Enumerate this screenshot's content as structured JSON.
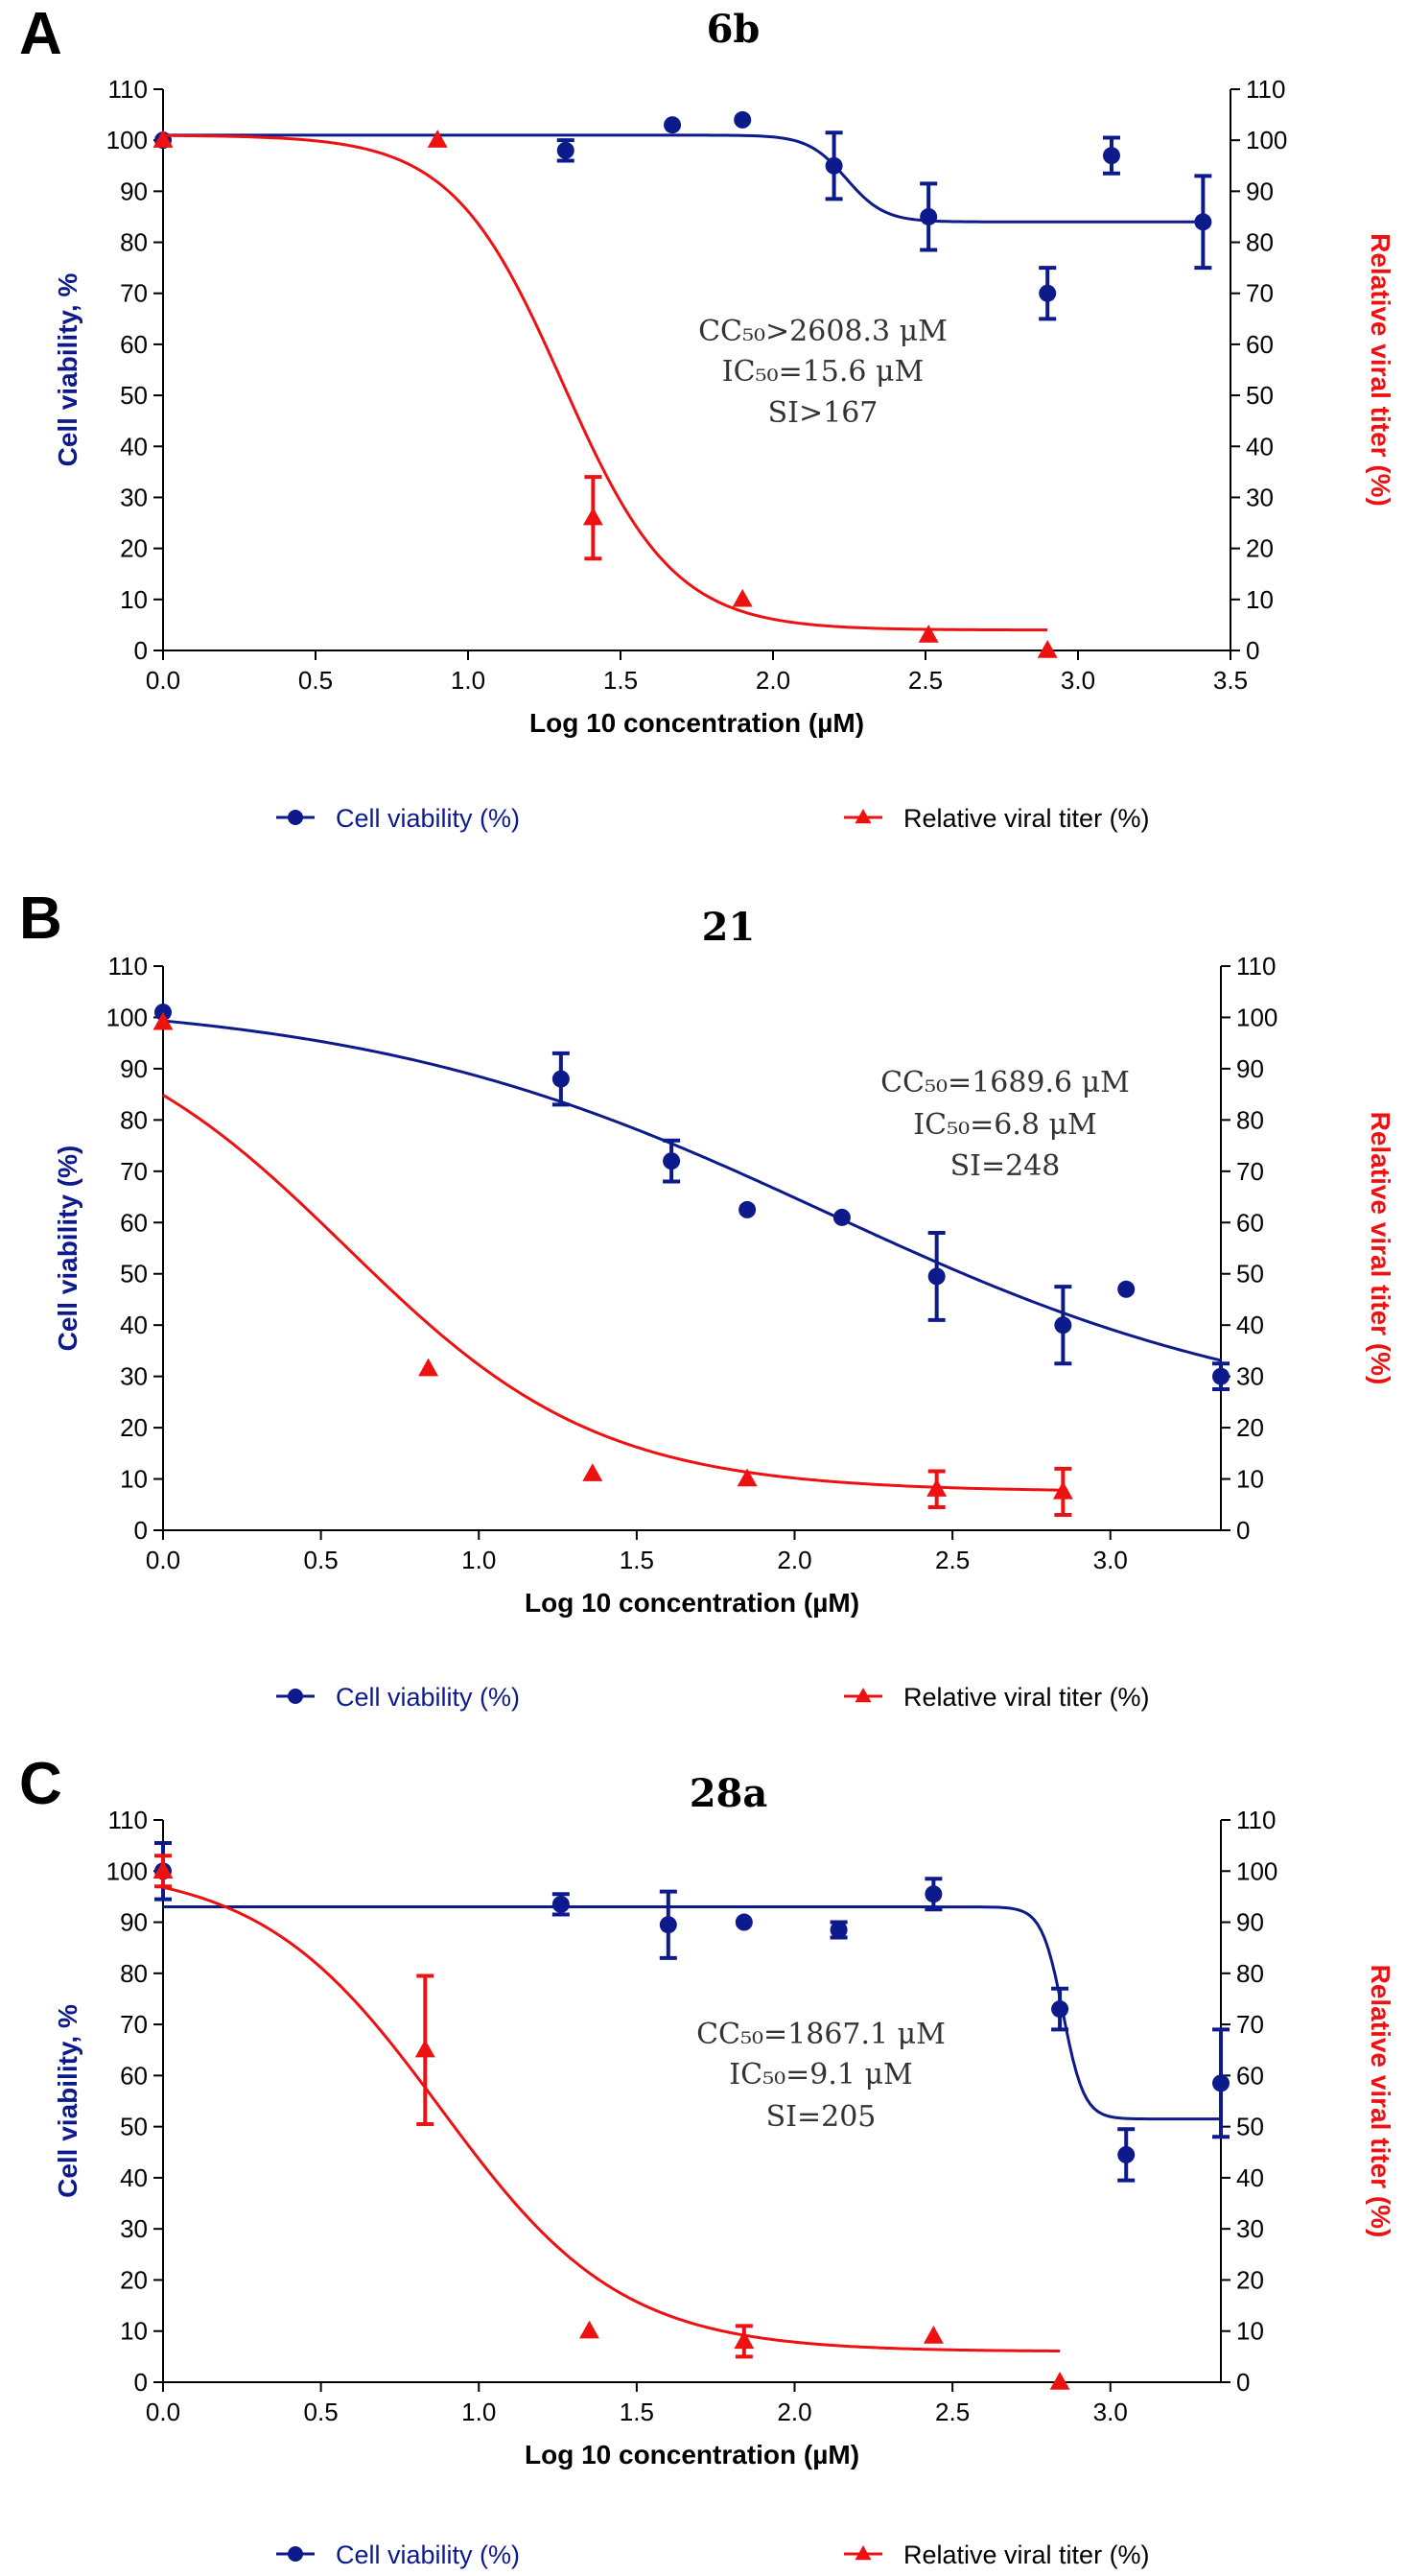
{
  "chart_data": [
    {
      "type": "scatter",
      "panel_label": "A",
      "title": "6b",
      "xlabel": "Log 10 concentration (µM)",
      "ylabel_left": "Cell viability, %",
      "ylabel_right": "Relative viral titer (%)",
      "xlim": [
        0,
        3.5
      ],
      "ylim": [
        0,
        110
      ],
      "x_ticks": [
        "0.0",
        "0.5",
        "1.0",
        "1.5",
        "2.0",
        "2.5",
        "3.0",
        "3.5"
      ],
      "y_ticks": [
        "0",
        "10",
        "20",
        "30",
        "40",
        "50",
        "60",
        "70",
        "80",
        "90",
        "100",
        "110"
      ],
      "annotation": [
        "CC₅₀>2608.3 μM",
        "IC₅₀=15.6 μM",
        "SI>167"
      ],
      "legend": [
        "Cell viability (%)",
        "Relative viral titer (%)"
      ],
      "series": [
        {
          "name": "Cell viability (%)",
          "color": "#0d1a8c",
          "marker": "circle",
          "points": [
            {
              "x": 0.0,
              "y": 100,
              "err": 0
            },
            {
              "x": 1.32,
              "y": 98,
              "err": 2
            },
            {
              "x": 1.67,
              "y": 103,
              "err": 0
            },
            {
              "x": 1.9,
              "y": 104,
              "err": 0
            },
            {
              "x": 2.2,
              "y": 95,
              "err": 6.5
            },
            {
              "x": 2.51,
              "y": 85,
              "err": 6.5
            },
            {
              "x": 2.9,
              "y": 70,
              "err": 5
            },
            {
              "x": 3.11,
              "y": 97,
              "err": 3.5
            },
            {
              "x": 3.41,
              "y": 84,
              "err": 9
            }
          ],
          "fit": {
            "model": "sigmoid",
            "top": 101,
            "bottom": 84,
            "x50": 2.24,
            "slope": 16,
            "x_range": [
              0,
              3.41
            ]
          }
        },
        {
          "name": "Relative viral titer (%)",
          "color": "#ee1111",
          "marker": "triangle",
          "points": [
            {
              "x": 0.0,
              "y": 100,
              "err": 0
            },
            {
              "x": 0.9,
              "y": 100,
              "err": 0
            },
            {
              "x": 1.41,
              "y": 26,
              "err": 8
            },
            {
              "x": 1.9,
              "y": 10,
              "err": 0
            },
            {
              "x": 2.51,
              "y": 3,
              "err": 0
            },
            {
              "x": 2.9,
              "y": 0,
              "err": 0
            }
          ],
          "fit": {
            "model": "sigmoid",
            "top": 101,
            "bottom": 4,
            "x50": 1.31,
            "slope": 5.5,
            "x_range": [
              0,
              2.9
            ]
          }
        }
      ]
    },
    {
      "type": "scatter",
      "panel_label": "B",
      "title": "21",
      "xlabel": "Log 10 concentration (µM)",
      "ylabel_left": "Cell viability (%)",
      "ylabel_right": "Relative viral titer (%)",
      "xlim": [
        0,
        3.35
      ],
      "ylim": [
        0,
        110
      ],
      "x_ticks": [
        "0.0",
        "0.5",
        "1.0",
        "1.5",
        "2.0",
        "2.5",
        "3.0"
      ],
      "y_ticks": [
        "0",
        "10",
        "20",
        "30",
        "40",
        "50",
        "60",
        "70",
        "80",
        "90",
        "100",
        "110"
      ],
      "annotation": [
        "CC₅₀=1689.6 μM",
        "IC₅₀=6.8 μM",
        "SI=248"
      ],
      "legend": [
        "Cell viability (%)",
        "Relative viral titer (%)"
      ],
      "series": [
        {
          "name": "Cell viability (%)",
          "color": "#0d1a8c",
          "marker": "circle",
          "points": [
            {
              "x": 0.0,
              "y": 101,
              "err": 0
            },
            {
              "x": 1.26,
              "y": 88,
              "err": 5
            },
            {
              "x": 1.61,
              "y": 72,
              "err": 4
            },
            {
              "x": 1.85,
              "y": 62.5,
              "err": 0
            },
            {
              "x": 2.15,
              "y": 61,
              "err": 0
            },
            {
              "x": 2.45,
              "y": 49.5,
              "err": 8.5
            },
            {
              "x": 2.85,
              "y": 40,
              "err": 7.5
            },
            {
              "x": 3.05,
              "y": 47,
              "err": 0
            },
            {
              "x": 3.35,
              "y": 30,
              "err": 2.5
            }
          ],
          "fit": {
            "model": "sigmoid",
            "top": 104,
            "bottom": 20,
            "x50": 2.1,
            "slope": 1.35,
            "x_range": [
              0,
              3.35
            ]
          }
        },
        {
          "name": "Relative viral titer (%)",
          "color": "#ee1111",
          "marker": "triangle",
          "points": [
            {
              "x": 0.0,
              "y": 99,
              "err": 0
            },
            {
              "x": 0.84,
              "y": 31.5,
              "err": 0
            },
            {
              "x": 1.36,
              "y": 11,
              "err": 0
            },
            {
              "x": 1.85,
              "y": 10,
              "err": 0
            },
            {
              "x": 2.45,
              "y": 8,
              "err": 3.5
            },
            {
              "x": 2.85,
              "y": 7.5,
              "err": 4.5
            }
          ],
          "fit": {
            "model": "sigmoid",
            "top": 103,
            "bottom": 7.5,
            "x50": 0.58,
            "slope": 2.5,
            "x_range": [
              0,
              2.85
            ]
          }
        }
      ]
    },
    {
      "type": "scatter",
      "panel_label": "C",
      "title": "28a",
      "xlabel": "Log 10 concentration (µM)",
      "ylabel_left": "Cell viability, %",
      "ylabel_right": "Relative viral titer (%)",
      "xlim": [
        0,
        3.35
      ],
      "ylim": [
        0,
        110
      ],
      "x_ticks": [
        "0.0",
        "0.5",
        "1.0",
        "1.5",
        "2.0",
        "2.5",
        "3.0"
      ],
      "y_ticks": [
        "0",
        "10",
        "20",
        "30",
        "40",
        "50",
        "60",
        "70",
        "80",
        "90",
        "100",
        "110"
      ],
      "annotation": [
        "CC₅₀=1867.1 μM",
        "IC₅₀=9.1 μM",
        "SI=205"
      ],
      "legend": [
        "Cell viability (%)",
        "Relative viral titer (%)"
      ],
      "series": [
        {
          "name": "Cell viability (%)",
          "color": "#0d1a8c",
          "marker": "circle",
          "points": [
            {
              "x": 0.0,
              "y": 100,
              "err": 5.5
            },
            {
              "x": 1.26,
              "y": 93.5,
              "err": 2
            },
            {
              "x": 1.6,
              "y": 89.5,
              "err": 6.5
            },
            {
              "x": 1.84,
              "y": 90,
              "err": 0
            },
            {
              "x": 2.14,
              "y": 88.5,
              "err": 1.5
            },
            {
              "x": 2.44,
              "y": 95.5,
              "err": 3
            },
            {
              "x": 2.84,
              "y": 73,
              "err": 4
            },
            {
              "x": 3.05,
              "y": 44.5,
              "err": 5
            },
            {
              "x": 3.35,
              "y": 58.5,
              "err": 10.5
            }
          ],
          "fit": {
            "model": "sigmoid",
            "top": 93,
            "bottom": 51.5,
            "x50": 2.85,
            "slope": 30,
            "x_range": [
              0,
              3.35
            ]
          }
        },
        {
          "name": "Relative viral titer (%)",
          "color": "#ee1111",
          "marker": "triangle",
          "points": [
            {
              "x": 0.0,
              "y": 100,
              "err": 3
            },
            {
              "x": 0.83,
              "y": 65,
              "err": 14.5
            },
            {
              "x": 1.35,
              "y": 10,
              "err": 0
            },
            {
              "x": 1.84,
              "y": 8,
              "err": 3
            },
            {
              "x": 2.44,
              "y": 9,
              "err": 0
            },
            {
              "x": 2.84,
              "y": 0,
              "err": 0
            }
          ],
          "fit": {
            "model": "sigmoid",
            "top": 101,
            "bottom": 6,
            "x50": 0.88,
            "slope": 3.5,
            "x_range": [
              0,
              2.84
            ]
          }
        }
      ]
    }
  ]
}
